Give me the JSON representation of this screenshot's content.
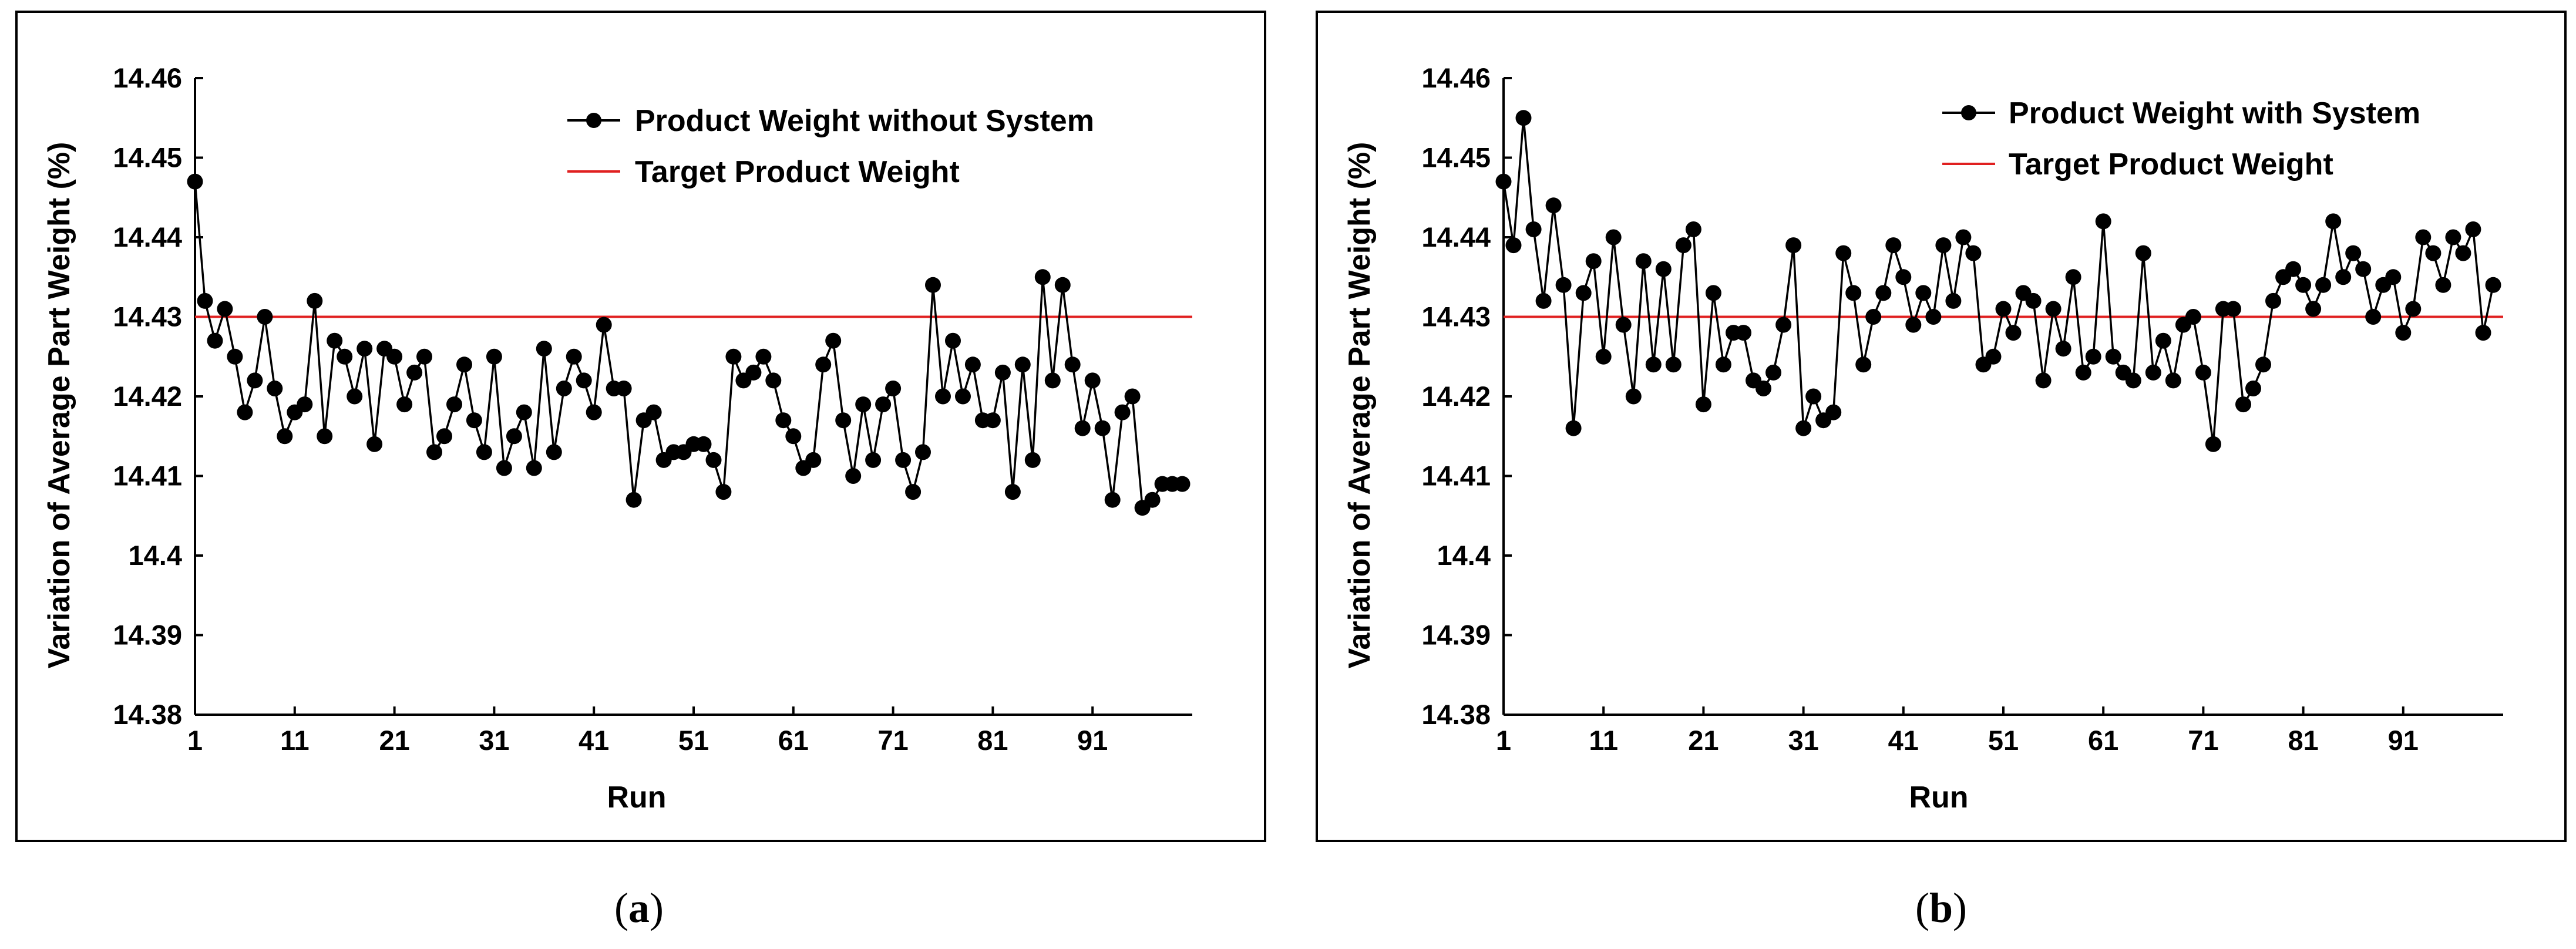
{
  "chart_data": [
    {
      "type": "line",
      "caption": [
        "(",
        "a",
        ")"
      ],
      "xlabel": "Run",
      "ylabel": "Variation of Average Part Weight (%)",
      "ylim": [
        14.38,
        14.46
      ],
      "yticks": [
        "14.46",
        "14.45",
        "14.44",
        "14.43",
        "14.42",
        "14.41",
        "14.4",
        "14.39",
        "14.38"
      ],
      "xlim": [
        1,
        101
      ],
      "xticks": [
        "1",
        "11",
        "21",
        "31",
        "41",
        "51",
        "61",
        "71",
        "81",
        "91"
      ],
      "legend_position": "top-right",
      "series": [
        {
          "name": "Product Weight without System",
          "color": "#000000",
          "x": [
            1,
            2,
            3,
            4,
            5,
            6,
            7,
            8,
            9,
            10,
            11,
            12,
            13,
            14,
            15,
            16,
            17,
            18,
            19,
            20,
            21,
            22,
            23,
            24,
            25,
            26,
            27,
            28,
            29,
            30,
            31,
            32,
            33,
            34,
            35,
            36,
            37,
            38,
            39,
            40,
            41,
            42,
            43,
            44,
            45,
            46,
            47,
            48,
            49,
            50,
            51,
            52,
            53,
            54,
            55,
            56,
            57,
            58,
            59,
            60,
            61,
            62,
            63,
            64,
            65,
            66,
            67,
            68,
            69,
            70,
            71,
            72,
            73,
            74,
            75,
            76,
            77,
            78,
            79,
            80,
            81,
            82,
            83,
            84,
            85,
            86,
            87,
            88,
            89,
            90,
            91,
            92,
            93,
            94,
            95,
            96,
            97,
            98,
            99,
            100
          ],
          "values": [
            14.447,
            14.432,
            14.427,
            14.431,
            14.425,
            14.418,
            14.422,
            14.43,
            14.421,
            14.415,
            14.418,
            14.419,
            14.432,
            14.415,
            14.427,
            14.425,
            14.42,
            14.426,
            14.414,
            14.426,
            14.425,
            14.419,
            14.423,
            14.425,
            14.413,
            14.415,
            14.419,
            14.424,
            14.417,
            14.413,
            14.425,
            14.411,
            14.415,
            14.418,
            14.411,
            14.426,
            14.413,
            14.421,
            14.425,
            14.422,
            14.418,
            14.429,
            14.421,
            14.421,
            14.407,
            14.417,
            14.418,
            14.412,
            14.413,
            14.413,
            14.414,
            14.414,
            14.412,
            14.408,
            14.425,
            14.422,
            14.423,
            14.425,
            14.422,
            14.417,
            14.415,
            14.411,
            14.412,
            14.424,
            14.427,
            14.417,
            14.41,
            14.419,
            14.412,
            14.419,
            14.421,
            14.412,
            14.408,
            14.413,
            14.434,
            14.42,
            14.427,
            14.42,
            14.424,
            14.417,
            14.417,
            14.423,
            14.408,
            14.424,
            14.412,
            14.435,
            14.422,
            14.434,
            14.424,
            14.416,
            14.422,
            14.416,
            14.407,
            14.418,
            14.42,
            14.406,
            14.407,
            14.409,
            14.409,
            14.409
          ]
        },
        {
          "name": "Target Product Weight",
          "color": "#e02020",
          "x": [
            1,
            101
          ],
          "values": [
            14.43,
            14.43
          ]
        }
      ]
    },
    {
      "type": "line",
      "caption": [
        "(",
        "b",
        ")"
      ],
      "xlabel": "Run",
      "ylabel": "Variation of Average Part Weight (%)",
      "ylim": [
        14.38,
        14.46
      ],
      "yticks": [
        "14.46",
        "14.45",
        "14.44",
        "14.43",
        "14.42",
        "14.41",
        "14.4",
        "14.39",
        "14.38"
      ],
      "xlim": [
        1,
        101
      ],
      "xticks": [
        "1",
        "11",
        "21",
        "31",
        "41",
        "51",
        "61",
        "71",
        "81",
        "91"
      ],
      "legend_position": "top-right",
      "series": [
        {
          "name": "Product Weight with System",
          "color": "#000000",
          "x": [
            1,
            2,
            3,
            4,
            5,
            6,
            7,
            8,
            9,
            10,
            11,
            12,
            13,
            14,
            15,
            16,
            17,
            18,
            19,
            20,
            21,
            22,
            23,
            24,
            25,
            26,
            27,
            28,
            29,
            30,
            31,
            32,
            33,
            34,
            35,
            36,
            37,
            38,
            39,
            40,
            41,
            42,
            43,
            44,
            45,
            46,
            47,
            48,
            49,
            50,
            51,
            52,
            53,
            54,
            55,
            56,
            57,
            58,
            59,
            60,
            61,
            62,
            63,
            64,
            65,
            66,
            67,
            68,
            69,
            70,
            71,
            72,
            73,
            74,
            75,
            76,
            77,
            78,
            79,
            80,
            81,
            82,
            83,
            84,
            85,
            86,
            87,
            88,
            89,
            90,
            91,
            92,
            93,
            94,
            95,
            96,
            97,
            98,
            99,
            100
          ],
          "values": [
            14.447,
            14.439,
            14.455,
            14.441,
            14.432,
            14.444,
            14.434,
            14.416,
            14.433,
            14.437,
            14.425,
            14.44,
            14.429,
            14.42,
            14.437,
            14.424,
            14.436,
            14.424,
            14.439,
            14.441,
            14.419,
            14.433,
            14.424,
            14.428,
            14.428,
            14.422,
            14.421,
            14.423,
            14.429,
            14.439,
            14.416,
            14.42,
            14.417,
            14.418,
            14.438,
            14.433,
            14.424,
            14.43,
            14.433,
            14.439,
            14.435,
            14.429,
            14.433,
            14.43,
            14.439,
            14.432,
            14.44,
            14.438,
            14.424,
            14.425,
            14.431,
            14.428,
            14.433,
            14.432,
            14.422,
            14.431,
            14.426,
            14.435,
            14.423,
            14.425,
            14.442,
            14.425,
            14.423,
            14.422,
            14.438,
            14.423,
            14.427,
            14.422,
            14.429,
            14.43,
            14.423,
            14.414,
            14.431,
            14.431,
            14.419,
            14.421,
            14.424,
            14.432,
            14.435,
            14.436,
            14.434,
            14.431,
            14.434,
            14.442,
            14.435,
            14.438,
            14.436,
            14.43,
            14.434,
            14.435,
            14.428,
            14.431,
            14.44,
            14.438,
            14.434,
            14.44,
            14.438,
            14.441,
            14.428,
            14.434
          ]
        },
        {
          "name": "Target Product Weight",
          "color": "#e02020",
          "x": [
            1,
            101
          ],
          "values": [
            14.43,
            14.43
          ]
        }
      ]
    }
  ]
}
